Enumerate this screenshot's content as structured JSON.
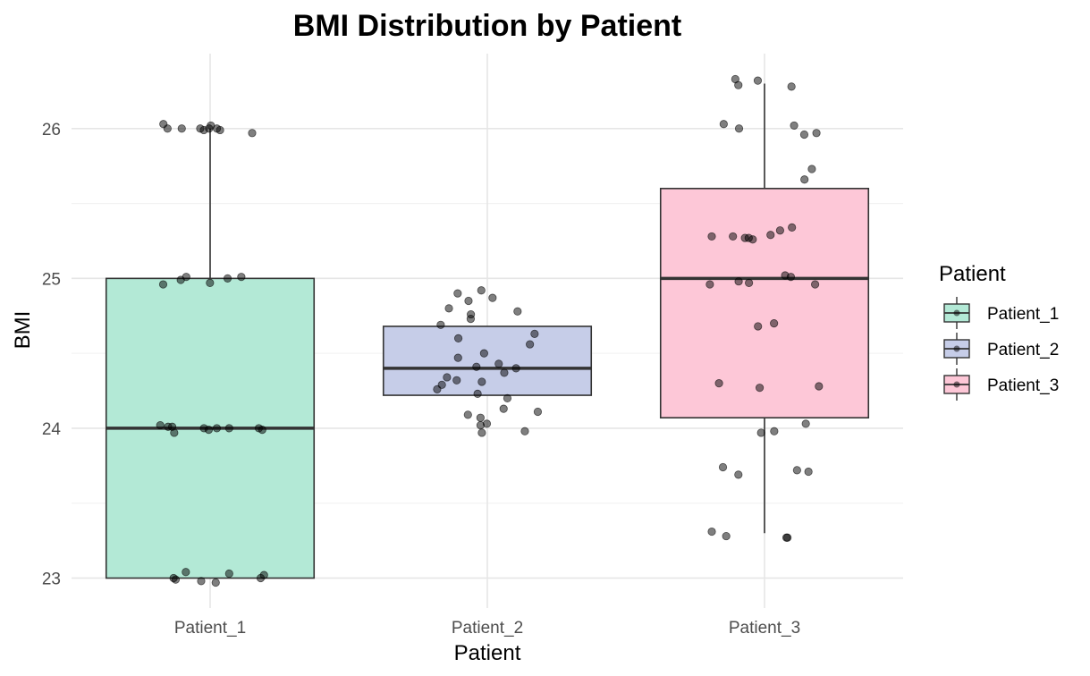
{
  "chart_data": {
    "type": "boxplot",
    "title": "BMI Distribution by Patient",
    "xlabel": "Patient",
    "ylabel": "BMI",
    "ylim": [
      22.8,
      26.5
    ],
    "yticks": [
      23,
      24,
      25,
      26
    ],
    "categories": [
      "Patient_1",
      "Patient_2",
      "Patient_3"
    ],
    "grid": true,
    "legend": {
      "title": "Patient",
      "position": "right"
    },
    "colors": [
      "#b3e9d6",
      "#c6cde8",
      "#fdc7d7"
    ],
    "boxes": [
      {
        "name": "Patient_1",
        "whisker_low": 23.0,
        "q1": 23.0,
        "median": 24.0,
        "q3": 25.0,
        "whisker_high": 26.0
      },
      {
        "name": "Patient_2",
        "whisker_low": 24.22,
        "q1": 24.22,
        "median": 24.4,
        "q3": 24.68,
        "whisker_high": 24.68
      },
      {
        "name": "Patient_3",
        "whisker_low": 23.3,
        "q1": 24.07,
        "median": 25.0,
        "q3": 25.6,
        "whisker_high": 26.3
      }
    ],
    "points": [
      [
        26.0,
        26.0,
        26.0,
        26.0,
        25.99,
        26.02,
        26.03,
        25.97,
        25.99,
        26.0,
        25.01,
        25.01,
        25.0,
        24.96,
        24.97,
        24.99,
        24.0,
        24.01,
        24.0,
        23.99,
        23.97,
        24.02,
        24.0,
        23.99,
        24.01,
        24.0,
        23.0,
        22.99,
        22.98,
        22.97,
        23.03,
        23.04,
        23.0,
        23.02
      ],
      [
        24.92,
        24.9,
        24.87,
        24.85,
        24.8,
        24.78,
        24.76,
        24.73,
        24.69,
        24.63,
        24.6,
        24.56,
        24.5,
        24.47,
        24.43,
        24.41,
        24.4,
        24.37,
        24.34,
        24.32,
        24.31,
        24.29,
        24.26,
        24.23,
        24.2,
        24.13,
        24.11,
        24.09,
        24.07,
        24.03,
        24.02,
        23.98,
        23.97
      ],
      [
        26.32,
        26.29,
        26.33,
        26.28,
        26.03,
        26.0,
        26.02,
        25.96,
        25.97,
        25.73,
        25.66,
        25.34,
        25.32,
        25.29,
        25.28,
        25.27,
        25.27,
        25.28,
        25.26,
        25.02,
        25.01,
        24.98,
        24.96,
        24.96,
        24.97,
        24.7,
        24.68,
        24.3,
        24.28,
        24.27,
        24.03,
        23.98,
        23.97,
        23.74,
        23.72,
        23.71,
        23.69,
        23.31,
        23.28,
        23.27,
        23.27
      ]
    ]
  }
}
